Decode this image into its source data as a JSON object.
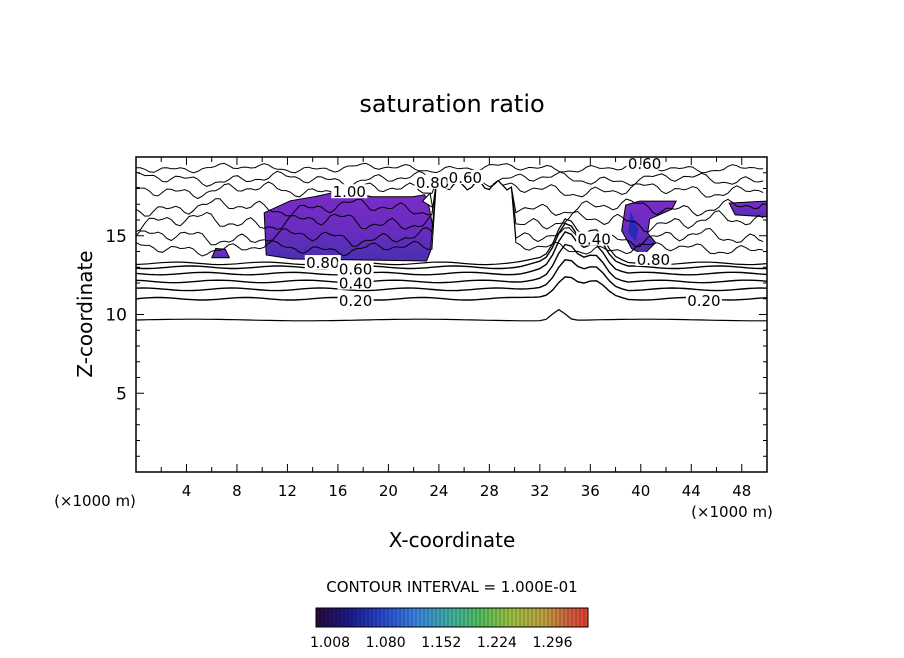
{
  "chart_data": {
    "type": "contour",
    "title": "saturation ratio",
    "xlabel": "X-coordinate",
    "ylabel": "Z-coordinate",
    "x_unit_label": "(×1000 m)",
    "z_unit_label": "(×1000 m)",
    "xlim": [
      0,
      50
    ],
    "ylim": [
      0,
      20
    ],
    "x_ticks": [
      4,
      8,
      12,
      16,
      20,
      24,
      28,
      32,
      36,
      40,
      44,
      48
    ],
    "x_tick_labels": [
      "4",
      "8",
      "12",
      "16",
      "20",
      "24",
      "28",
      "32",
      "36",
      "40",
      "44",
      "48"
    ],
    "y_ticks": [
      5,
      10,
      15
    ],
    "y_tick_labels": [
      "5",
      "10",
      "15"
    ],
    "contour_interval_text": "CONTOUR INTERVAL = 1.000E-01",
    "colorbar": {
      "range": [
        1.008,
        1.36
      ],
      "tick_labels": [
        "1.008",
        "1.080",
        "1.152",
        "1.224",
        "1.296"
      ],
      "colors": [
        "#2a0a3a",
        "#1a1a8a",
        "#2a4ad0",
        "#3a8ae0",
        "#40b0a0",
        "#50c060",
        "#a0c040",
        "#c0a040",
        "#d06040",
        "#e04030"
      ]
    },
    "contour_labels": [
      {
        "text": "1.00",
        "x": 16.9,
        "z": 17.7
      },
      {
        "text": "0.80",
        "x": 23.5,
        "z": 18.3
      },
      {
        "text": "0.60",
        "x": 26.1,
        "z": 18.6
      },
      {
        "text": "0.60",
        "x": 40.3,
        "z": 19.5
      },
      {
        "text": "0.80",
        "x": 14.8,
        "z": 13.2
      },
      {
        "text": "0.60",
        "x": 17.4,
        "z": 12.8
      },
      {
        "text": "0.40",
        "x": 17.4,
        "z": 11.9
      },
      {
        "text": "0.20",
        "x": 17.4,
        "z": 10.8
      },
      {
        "text": "0.40",
        "x": 36.3,
        "z": 14.7
      },
      {
        "text": "0.80",
        "x": 41.0,
        "z": 13.4
      },
      {
        "text": "0.20",
        "x": 45.0,
        "z": 10.8
      }
    ],
    "regions_above_1": [
      {
        "x": [
          10.0,
          23.5
        ],
        "z": [
          13.4,
          17.6
        ]
      },
      {
        "x": [
          38.8,
          42.8
        ],
        "z": [
          13.8,
          17.2
        ]
      },
      {
        "x": [
          47.0,
          50.0
        ],
        "z": [
          16.2,
          17.2
        ]
      },
      {
        "x": [
          6.0,
          7.4
        ],
        "z": [
          13.6,
          14.2
        ]
      }
    ],
    "grid": false,
    "legend": "none"
  }
}
